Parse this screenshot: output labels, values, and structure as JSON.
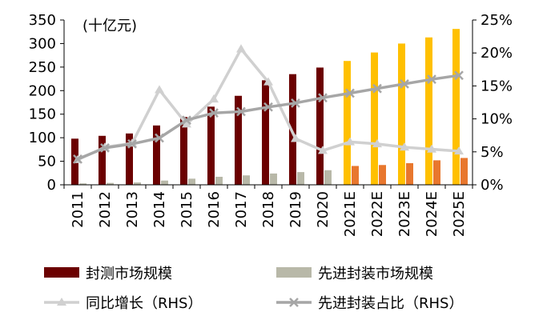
{
  "chart_data": {
    "type": "bar",
    "unit_label": "(十亿元)",
    "categories": [
      "2011",
      "2012",
      "2013",
      "2014",
      "2015",
      "2016",
      "2017",
      "2018",
      "2019",
      "2020",
      "2021E",
      "2022E",
      "2023E",
      "2024E",
      "2025E"
    ],
    "y_left": {
      "min": 0,
      "max": 350,
      "ticks": [
        0,
        50,
        100,
        150,
        200,
        250,
        300,
        350
      ]
    },
    "y_right": {
      "min": 0,
      "max": 25,
      "ticks": [
        "0%",
        "5%",
        "10%",
        "15%",
        "20%",
        "25%"
      ],
      "tick_values": [
        0,
        5,
        10,
        15,
        20,
        25
      ]
    },
    "forecast_start_index": 10,
    "series": [
      {
        "name": "封测市场规模",
        "type": "bar",
        "axis": "left",
        "color": "#6b0000",
        "forecast_color": "#ffc000",
        "values": [
          98,
          104,
          109,
          126,
          144,
          166,
          189,
          222,
          235,
          249,
          263,
          281,
          300,
          313,
          331
        ]
      },
      {
        "name": "先进封装市场规模",
        "type": "bar",
        "axis": "left",
        "color": "#b8b8a8",
        "forecast_color": "#e8772e",
        "values": [
          3,
          4,
          5,
          9,
          13,
          17,
          20,
          24,
          27,
          31,
          40,
          42,
          46,
          52,
          57
        ]
      },
      {
        "name": "同比增长（RHS）",
        "type": "line",
        "axis": "right",
        "color": "#d0d0d0",
        "marker": "triangle",
        "values": [
          3.8,
          5.7,
          6.3,
          14.4,
          9.2,
          13.0,
          20.6,
          15.6,
          7.0,
          5.2,
          6.5,
          6.2,
          5.7,
          5.4,
          5.1
        ]
      },
      {
        "name": "先进封装占比（RHS）",
        "type": "line",
        "axis": "right",
        "color": "#a6a6a6",
        "marker": "x",
        "values": [
          3.9,
          5.6,
          6.2,
          7.1,
          9.8,
          10.9,
          11.1,
          11.8,
          12.4,
          13.2,
          13.9,
          14.6,
          15.3,
          16.0,
          16.6
        ]
      }
    ],
    "legend": {
      "placement": "bottom",
      "items": [
        "封测市场规模",
        "先进封装市场规模",
        "同比增长（RHS）",
        "先进封装占比（RHS）"
      ]
    },
    "grid": false
  }
}
